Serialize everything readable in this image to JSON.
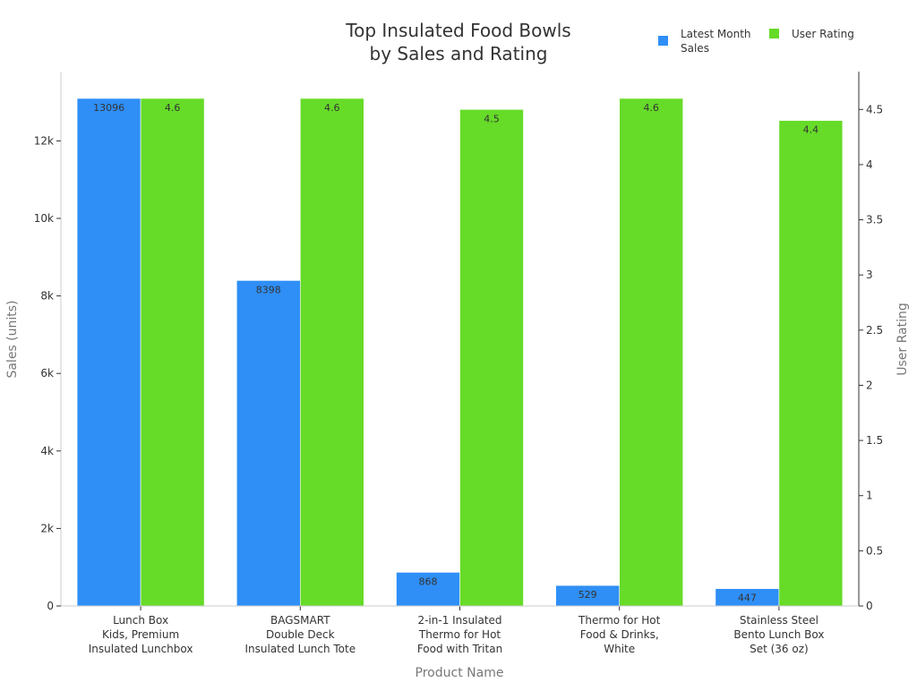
{
  "chart_data": {
    "type": "bar",
    "title_lines": [
      "Top Insulated Food Bowls",
      "by Sales and Rating"
    ],
    "xlabel": "Product Name",
    "ylabel_left": "Sales (units)",
    "ylabel_right": "User Rating",
    "categories": [
      [
        "Lunch Box",
        "Kids, Premium",
        "Insulated Lunchbox"
      ],
      [
        "BAGSMART",
        "Double Deck",
        "Insulated Lunch Tote"
      ],
      [
        "2-in-1 Insulated",
        "Thermo for Hot",
        "Food with Tritan"
      ],
      [
        "Thermo for Hot",
        "Food & Drinks,",
        "White"
      ],
      [
        "Stainless Steel",
        "Bento Lunch Box",
        "Set (36 oz)"
      ]
    ],
    "series": [
      {
        "name_lines": [
          "Latest Month",
          "Sales"
        ],
        "axis": "left",
        "color": "#2f8ff7",
        "values": [
          13096,
          8398,
          868,
          529,
          447
        ],
        "labels": [
          "13096",
          "8398",
          "868",
          "529",
          "447"
        ]
      },
      {
        "name_lines": [
          "User Rating"
        ],
        "axis": "right",
        "color": "#66db28",
        "values": [
          4.6,
          4.6,
          4.5,
          4.6,
          4.4
        ],
        "labels": [
          "4.6",
          "4.6",
          "4.5",
          "4.6",
          "4.4"
        ]
      }
    ],
    "left_axis": {
      "ylim": [
        0,
        13788
      ],
      "ticks": [
        0,
        2000,
        4000,
        6000,
        8000,
        10000,
        12000
      ],
      "tick_labels": [
        "0",
        "2k",
        "4k",
        "6k",
        "8k",
        "10k",
        "12k"
      ]
    },
    "right_axis": {
      "ylim": [
        0,
        4.843
      ],
      "ticks": [
        0,
        0.5,
        1,
        1.5,
        2,
        2.5,
        3,
        3.5,
        4,
        4.5
      ],
      "tick_labels": [
        "0",
        "0.5",
        "1",
        "1.5",
        "2",
        "2.5",
        "3",
        "3.5",
        "4",
        "4.5"
      ]
    },
    "grid": false,
    "legend_position": "top-right"
  }
}
